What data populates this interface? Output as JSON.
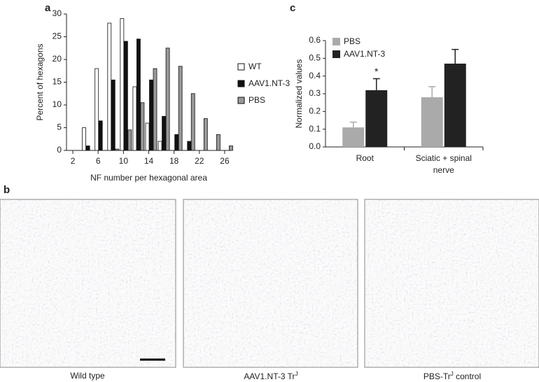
{
  "panel_labels": [
    "a",
    "b",
    "c"
  ],
  "chart_data": [
    {
      "type": "bar",
      "x": [
        4,
        6,
        8,
        10,
        12,
        14,
        16,
        18,
        20,
        22,
        24,
        26
      ],
      "series": [
        {
          "name": "WT",
          "color": "#ffffff",
          "values": [
            5,
            18,
            28,
            29,
            14,
            6,
            2,
            null,
            null,
            null,
            null,
            null
          ]
        },
        {
          "name": "AAV1.NT-3",
          "color": "#111111",
          "values": [
            1,
            6.5,
            15.5,
            24,
            24.5,
            15.5,
            7.5,
            3.5,
            2,
            null,
            null,
            null
          ]
        },
        {
          "name": "PBS",
          "color": "#999999",
          "values": [
            null,
            null,
            0.3,
            4.5,
            10.5,
            18,
            22.5,
            18.5,
            12.5,
            7,
            3.5,
            1
          ]
        }
      ],
      "x_label": "NF number per hexagonal area",
      "y_label": "Percent of hexagons",
      "xlim": [
        1,
        27
      ],
      "xticks": [
        2,
        6,
        10,
        14,
        18,
        22,
        26
      ],
      "ylim": [
        0,
        30
      ],
      "yticks": [
        0,
        5,
        10,
        15,
        20,
        25,
        30
      ]
    },
    {
      "type": "errorbar-bar",
      "categories": [
        "Root",
        "Sciatic + spinal nerve"
      ],
      "series": [
        {
          "name": "PBS",
          "color": "#aaaaaa",
          "values": [
            0.11,
            0.28
          ],
          "errors": [
            0.03,
            0.06
          ]
        },
        {
          "name": "AAV1.NT-3",
          "color": "#222222",
          "values": [
            0.32,
            0.47
          ],
          "errors": [
            0.065,
            0.08
          ]
        }
      ],
      "y_label": "Normalized values",
      "annotation": "*",
      "ylim": [
        0,
        0.6
      ],
      "yticks": [
        {
          "value": 0,
          "label": "0.0"
        },
        {
          "value": 0.1,
          "label": "0.1"
        },
        {
          "value": 0.2,
          "label": "0.2"
        },
        {
          "value": 0.3,
          "label": "0.3"
        },
        {
          "value": 0.4,
          "label": "0.4"
        },
        {
          "value": 0.5,
          "label": "0.5"
        },
        {
          "value": 0.6,
          "label": "0.6"
        }
      ]
    }
  ],
  "images": [
    {
      "caption": {
        "text": "Wild type"
      }
    },
    {
      "caption": {
        "text": "AAV1.NT-3 Tr",
        "superscript": "J"
      }
    },
    {
      "caption": {
        "text": "PBS-Tr",
        "superscript": "J",
        "after": " control"
      }
    }
  ]
}
